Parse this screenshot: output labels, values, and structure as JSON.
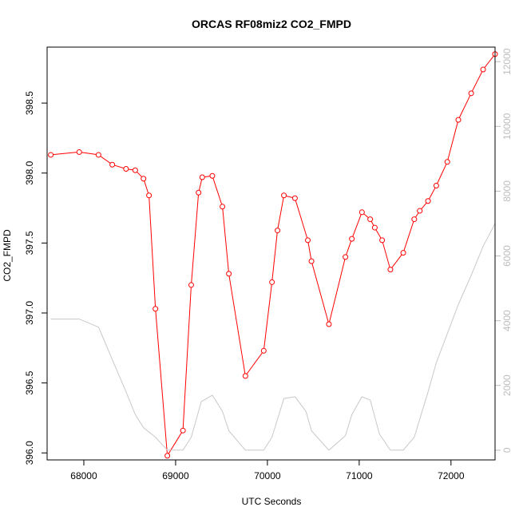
{
  "chart_data": {
    "type": "line",
    "title": "ORCAS RF08miz2 CO2_FMPD",
    "xlabel": "UTC Seconds",
    "ylabel": "CO2_FMPD",
    "y2label": "",
    "xlim": [
      67600,
      72480
    ],
    "ylim": [
      395.95,
      398.9
    ],
    "y2lim": [
      -300,
      12450
    ],
    "x_ticks": [
      68000,
      69000,
      70000,
      71000,
      72000
    ],
    "y_ticks": [
      396.0,
      396.5,
      397.0,
      397.5,
      398.0,
      398.5
    ],
    "y_tick_labels": [
      "396.0",
      "396.5",
      "397.0",
      "397.5",
      "398.0",
      "398.5"
    ],
    "y2_ticks": [
      0,
      2000,
      4000,
      6000,
      8000,
      10000,
      12000
    ],
    "grid": false,
    "colors": {
      "primary": "#ff0000",
      "secondary": "#c8c8c8",
      "right_axis": "#bdbdbd"
    },
    "series": [
      {
        "axis": "left",
        "style": "line+markers",
        "color": "#ff0000",
        "x": [
          67640,
          67950,
          68160,
          68310,
          68460,
          68560,
          68650,
          68710,
          68780,
          68910,
          69080,
          69170,
          69250,
          69290,
          69400,
          69510,
          69580,
          69760,
          69960,
          70050,
          70110,
          70180,
          70300,
          70440,
          70480,
          70670,
          70850,
          70920,
          71030,
          71120,
          71170,
          71250,
          71340,
          71480,
          71600,
          71660,
          71750,
          71840,
          71960,
          72080,
          72220,
          72350,
          72480
        ],
        "y": [
          398.13,
          398.15,
          398.13,
          398.06,
          398.03,
          398.02,
          397.96,
          397.84,
          397.03,
          395.98,
          396.16,
          397.2,
          397.86,
          397.97,
          397.98,
          397.76,
          397.28,
          396.55,
          396.73,
          397.22,
          397.59,
          397.84,
          397.82,
          397.52,
          397.37,
          396.92,
          397.4,
          397.53,
          397.72,
          397.67,
          397.61,
          397.52,
          397.31,
          397.43,
          397.67,
          397.73,
          397.8,
          397.91,
          398.08,
          398.38,
          398.57,
          398.74,
          398.85
        ]
      },
      {
        "axis": "right",
        "style": "line",
        "color": "#c8c8c8",
        "x": [
          67640,
          67950,
          68160,
          68310,
          68460,
          68560,
          68650,
          68780,
          68910,
          69080,
          69170,
          69280,
          69400,
          69510,
          69580,
          69760,
          69960,
          70050,
          70180,
          70300,
          70420,
          70480,
          70670,
          70850,
          70920,
          71030,
          71120,
          71220,
          71340,
          71480,
          71600,
          71750,
          71840,
          71960,
          72080,
          72220,
          72350,
          72480
        ],
        "y": [
          4050,
          4050,
          3800,
          2800,
          1800,
          1100,
          700,
          400,
          0,
          0,
          400,
          1500,
          1700,
          1200,
          600,
          0,
          0,
          400,
          1600,
          1650,
          1200,
          600,
          0,
          450,
          1100,
          1650,
          1550,
          500,
          0,
          0,
          400,
          1800,
          2700,
          3600,
          4500,
          5400,
          6300,
          7000
        ]
      }
    ]
  }
}
